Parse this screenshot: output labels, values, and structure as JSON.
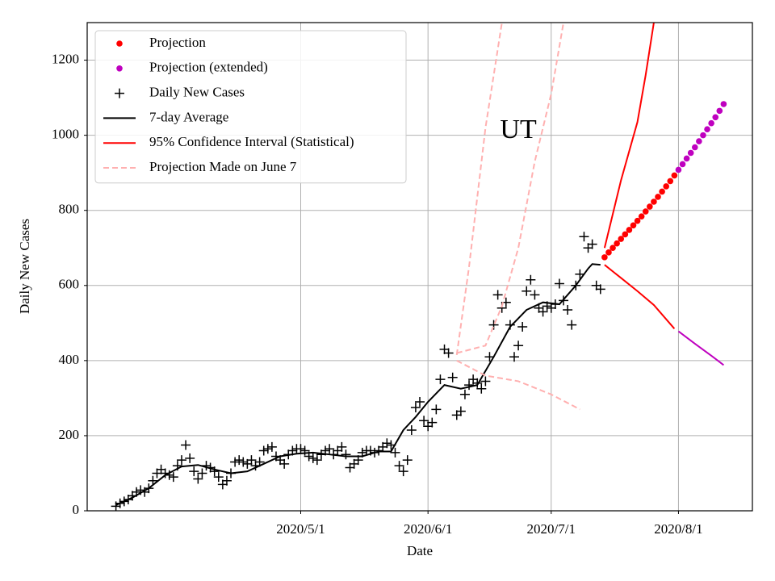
{
  "chart_data": {
    "type": "line",
    "annotation": {
      "text": "UT",
      "x": "2020-06-23",
      "y": 1010
    },
    "xlabel": "Date",
    "ylabel": "Daily New Cases",
    "xlim": [
      "2020-03-10",
      "2020-08-19"
    ],
    "xticks": [
      {
        "value": "2020-05-01",
        "label": "2020/5/1"
      },
      {
        "value": "2020-06-01",
        "label": "2020/6/1"
      },
      {
        "value": "2020-07-01",
        "label": "2020/7/1"
      },
      {
        "value": "2020-08-01",
        "label": "2020/8/1"
      }
    ],
    "ylim": [
      0,
      1300
    ],
    "yticks": [
      0,
      200,
      400,
      600,
      800,
      1000,
      1200
    ],
    "grid": true,
    "legend": "upper left",
    "series": [
      {
        "name": "Projection",
        "color": "#ff0000",
        "marker": "o",
        "x": [
          "2020-07-14",
          "2020-07-15",
          "2020-07-16",
          "2020-07-17",
          "2020-07-18",
          "2020-07-19",
          "2020-07-20",
          "2020-07-21",
          "2020-07-22",
          "2020-07-23",
          "2020-07-24",
          "2020-07-25",
          "2020-07-26",
          "2020-07-27",
          "2020-07-28",
          "2020-07-29",
          "2020-07-30",
          "2020-07-31"
        ],
        "values": [
          675,
          688,
          700,
          712,
          724,
          736,
          748,
          760,
          772,
          784,
          797,
          810,
          823,
          836,
          850,
          864,
          878,
          893
        ]
      },
      {
        "name": "Projection (extended)",
        "color": "#bf00bf",
        "marker": "o",
        "x": [
          "2020-08-01",
          "2020-08-02",
          "2020-08-03",
          "2020-08-04",
          "2020-08-05",
          "2020-08-06",
          "2020-08-07",
          "2020-08-08",
          "2020-08-09",
          "2020-08-10",
          "2020-08-11",
          "2020-08-12"
        ],
        "values": [
          908,
          923,
          938,
          953,
          968,
          984,
          1000,
          1016,
          1032,
          1048,
          1065,
          1083
        ]
      },
      {
        "name": "Daily New Cases",
        "color": "#000000",
        "marker": "+",
        "x": [
          "2020-03-17",
          "2020-03-18",
          "2020-03-19",
          "2020-03-20",
          "2020-03-21",
          "2020-03-22",
          "2020-03-23",
          "2020-03-24",
          "2020-03-25",
          "2020-03-26",
          "2020-03-27",
          "2020-03-28",
          "2020-03-29",
          "2020-03-30",
          "2020-03-31",
          "2020-04-01",
          "2020-04-02",
          "2020-04-03",
          "2020-04-04",
          "2020-04-05",
          "2020-04-06",
          "2020-04-07",
          "2020-04-08",
          "2020-04-09",
          "2020-04-10",
          "2020-04-11",
          "2020-04-12",
          "2020-04-13",
          "2020-04-14",
          "2020-04-15",
          "2020-04-16",
          "2020-04-17",
          "2020-04-18",
          "2020-04-19",
          "2020-04-20",
          "2020-04-21",
          "2020-04-22",
          "2020-04-23",
          "2020-04-24",
          "2020-04-25",
          "2020-04-26",
          "2020-04-27",
          "2020-04-28",
          "2020-04-29",
          "2020-04-30",
          "2020-05-01",
          "2020-05-02",
          "2020-05-03",
          "2020-05-04",
          "2020-05-05",
          "2020-05-06",
          "2020-05-07",
          "2020-05-08",
          "2020-05-09",
          "2020-05-10",
          "2020-05-11",
          "2020-05-12",
          "2020-05-13",
          "2020-05-14",
          "2020-05-15",
          "2020-05-16",
          "2020-05-17",
          "2020-05-18",
          "2020-05-19",
          "2020-05-20",
          "2020-05-21",
          "2020-05-22",
          "2020-05-23",
          "2020-05-24",
          "2020-05-25",
          "2020-05-26",
          "2020-05-27",
          "2020-05-28",
          "2020-05-29",
          "2020-05-30",
          "2020-05-31",
          "2020-06-01",
          "2020-06-02",
          "2020-06-03",
          "2020-06-04",
          "2020-06-05",
          "2020-06-06",
          "2020-06-07",
          "2020-06-08",
          "2020-06-09",
          "2020-06-10",
          "2020-06-11",
          "2020-06-12",
          "2020-06-13",
          "2020-06-14",
          "2020-06-15",
          "2020-06-16",
          "2020-06-17",
          "2020-06-18",
          "2020-06-19",
          "2020-06-20",
          "2020-06-21",
          "2020-06-22",
          "2020-06-23",
          "2020-06-24",
          "2020-06-25",
          "2020-06-26",
          "2020-06-27",
          "2020-06-28",
          "2020-06-29",
          "2020-06-30",
          "2020-07-01",
          "2020-07-02",
          "2020-07-03",
          "2020-07-04",
          "2020-07-05",
          "2020-07-06",
          "2020-07-07",
          "2020-07-08",
          "2020-07-09",
          "2020-07-10",
          "2020-07-11",
          "2020-07-12",
          "2020-07-13"
        ],
        "values": [
          12,
          20,
          25,
          30,
          40,
          50,
          55,
          50,
          60,
          80,
          100,
          110,
          100,
          95,
          90,
          120,
          135,
          175,
          140,
          105,
          85,
          100,
          120,
          115,
          105,
          90,
          70,
          80,
          100,
          130,
          135,
          130,
          125,
          135,
          120,
          130,
          160,
          165,
          170,
          145,
          135,
          125,
          150,
          160,
          165,
          165,
          160,
          145,
          140,
          135,
          150,
          160,
          165,
          150,
          160,
          170,
          150,
          115,
          125,
          135,
          155,
          160,
          160,
          155,
          160,
          170,
          180,
          175,
          155,
          120,
          105,
          135,
          215,
          275,
          290,
          240,
          225,
          235,
          270,
          350,
          430,
          420,
          355,
          255,
          265,
          310,
          335,
          350,
          340,
          325,
          345,
          410,
          495,
          575,
          540,
          555,
          495,
          410,
          440,
          490,
          585,
          615,
          575,
          540,
          530,
          545,
          540,
          550,
          605,
          560,
          535,
          495,
          600,
          630,
          730,
          700,
          710,
          600,
          590
        ]
      },
      {
        "name": "7-day Average",
        "color": "#000000",
        "linestyle": "-",
        "x": [
          "2020-03-17",
          "2020-03-21",
          "2020-03-25",
          "2020-03-29",
          "2020-04-02",
          "2020-04-06",
          "2020-04-10",
          "2020-04-14",
          "2020-04-18",
          "2020-04-22",
          "2020-04-26",
          "2020-04-30",
          "2020-05-04",
          "2020-05-08",
          "2020-05-12",
          "2020-05-16",
          "2020-05-20",
          "2020-05-23",
          "2020-05-26",
          "2020-05-29",
          "2020-06-01",
          "2020-06-05",
          "2020-06-09",
          "2020-06-13",
          "2020-06-17",
          "2020-06-21",
          "2020-06-25",
          "2020-06-29",
          "2020-07-03",
          "2020-07-07",
          "2020-07-10",
          "2020-07-11",
          "2020-07-13"
        ],
        "values": [
          15,
          35,
          60,
          95,
          118,
          122,
          110,
          100,
          105,
          125,
          145,
          152,
          155,
          150,
          145,
          145,
          158,
          158,
          215,
          250,
          290,
          335,
          325,
          335,
          410,
          490,
          535,
          555,
          550,
          600,
          645,
          657,
          655
        ]
      },
      {
        "name": "95% Confidence Interval (Statistical)",
        "color": "#ff0000",
        "linestyle": "-",
        "x": [
          "2020-07-14",
          "2020-07-18",
          "2020-07-22",
          "2020-07-24",
          "2020-07-26"
        ],
        "values": [
          700,
          880,
          1035,
          1160,
          1300
        ]
      },
      {
        "color": "#ff0000",
        "linestyle": "-",
        "x": [
          "2020-07-14",
          "2020-07-18",
          "2020-07-22",
          "2020-07-26",
          "2020-07-31"
        ],
        "values": [
          655,
          620,
          585,
          548,
          485
        ]
      },
      {
        "color": "#bf00bf",
        "linestyle": "-",
        "x": [
          "2020-08-01",
          "2020-08-05",
          "2020-08-09",
          "2020-08-12"
        ],
        "values": [
          478,
          445,
          413,
          388
        ]
      },
      {
        "name": "Projection Made on June 7",
        "color": "#ffb0b0",
        "linestyle": "--",
        "x": [
          "2020-06-08",
          "2020-06-11",
          "2020-06-15",
          "2020-06-19"
        ],
        "values": [
          415,
          650,
          1020,
          1300
        ]
      },
      {
        "color": "#ffb0b0",
        "linestyle": "--",
        "x": [
          "2020-06-08",
          "2020-06-15",
          "2020-06-19",
          "2020-06-23",
          "2020-06-27",
          "2020-07-01",
          "2020-07-04"
        ],
        "values": [
          420,
          440,
          545,
          700,
          930,
          1110,
          1300
        ]
      },
      {
        "color": "#ffb0b0",
        "linestyle": "--",
        "x": [
          "2020-06-08",
          "2020-06-15",
          "2020-06-23",
          "2020-07-01",
          "2020-07-08"
        ],
        "values": [
          400,
          360,
          345,
          310,
          270
        ]
      }
    ]
  }
}
